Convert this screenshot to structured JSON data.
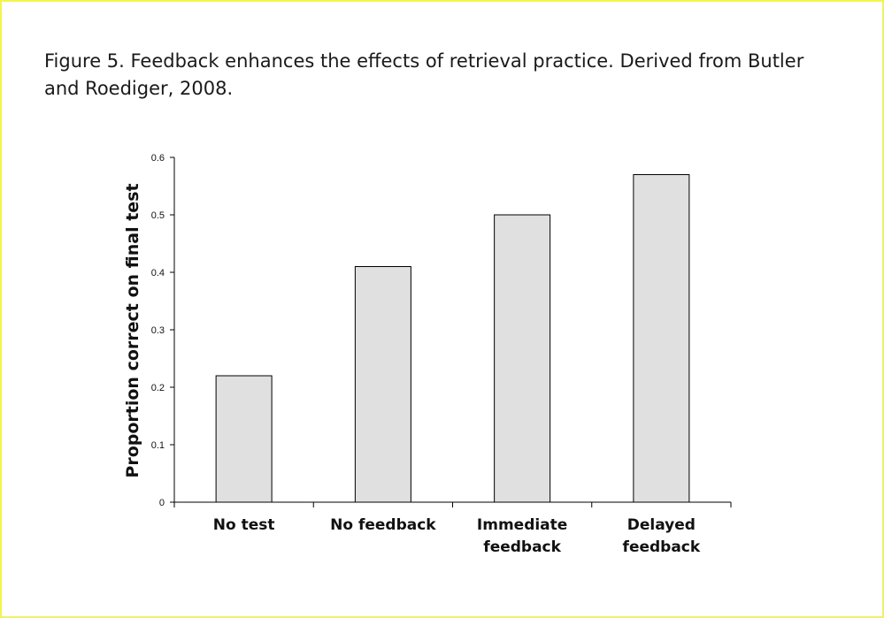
{
  "caption": "Figure 5. Feedback enhances the effects of retrieval practice. Derived from Butler and Roediger, 2008.",
  "chart_data": {
    "type": "bar",
    "categories": [
      [
        "No test"
      ],
      [
        "No feedback"
      ],
      [
        "Immediate",
        "feedback"
      ],
      [
        "Delayed",
        "feedback"
      ]
    ],
    "values": [
      0.22,
      0.41,
      0.5,
      0.57
    ],
    "ylabel": "Proportion correct on final test",
    "xlabel": "",
    "ylim": [
      0,
      0.6
    ],
    "yticks": [
      "0",
      "0.1",
      "0.2",
      "0.3",
      "0.4",
      "0.5",
      "0.6"
    ],
    "bar_color": "#e0e0e0",
    "grid": false,
    "legend": "none"
  }
}
